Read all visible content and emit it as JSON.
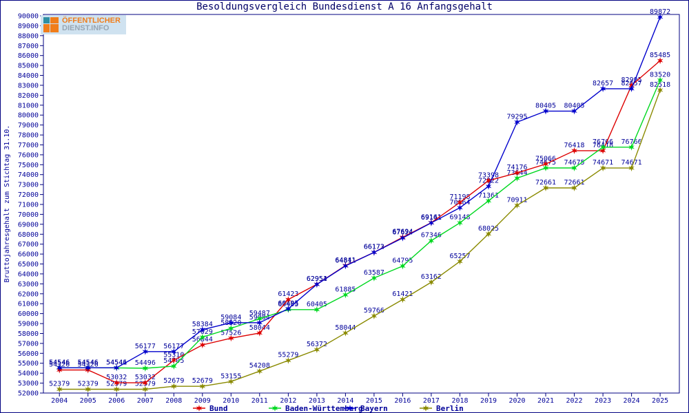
{
  "logo": {
    "line1": "ÖFFENTLICHER",
    "line2": "DIENST.INFO"
  },
  "colors": {
    "frame": "#000080",
    "label_text": "#000099",
    "title_text": "#000066",
    "bund": "#dd0000",
    "baden_wuerttemberg": "#00d820",
    "bayern": "#0000cc",
    "berlin": "#8a8a00"
  },
  "chart_data": {
    "type": "line",
    "title": "Besoldungsvergleich Bundesdienst A 16 Anfangsgehalt",
    "xlabel": "",
    "ylabel": "Bruttojahresgehalt zum Stichtag 31.10.",
    "ylim": [
      52000,
      90000
    ],
    "y_step": 1000,
    "grid": false,
    "legend_position": "bottom",
    "x": [
      2004,
      2005,
      2006,
      2007,
      2008,
      2009,
      2010,
      2011,
      2012,
      2013,
      2014,
      2015,
      2016,
      2017,
      2018,
      2019,
      2020,
      2021,
      2022,
      2023,
      2024,
      2025
    ],
    "series": [
      {
        "name": "Bund",
        "color": "#dd0000",
        "values": [
          54326,
          54326,
          53032,
          53032,
          55310,
          56844,
          57526,
          58044,
          61423,
          62954,
          64841,
          66173,
          67694,
          69161,
          71198,
          73398,
          74176,
          75066,
          76418,
          76418,
          82995,
          85485
        ]
      },
      {
        "name": "Baden-Württemberg",
        "color": "#00d820",
        "values": [
          54546,
          54546,
          54541,
          54496,
          54705,
          57629,
          58520,
          59487,
          60405,
          60405,
          61885,
          63587,
          64795,
          67346,
          69148,
          71361,
          73644,
          74675,
          74675,
          76766,
          76766,
          83520
        ]
      },
      {
        "name": "Bayern",
        "color": "#0000cc",
        "values": [
          54546,
          54546,
          54546,
          56177,
          56177,
          58384,
          59084,
          59084,
          60495,
          62951,
          64811,
          66172,
          67624,
          69141,
          70664,
          72822,
          79295,
          80405,
          80405,
          82657,
          82657,
          89872
        ]
      },
      {
        "name": "Berlin",
        "color": "#8a8a00",
        "values": [
          52379,
          52379,
          52379,
          52379,
          52679,
          52679,
          53155,
          54208,
          55279,
          56372,
          58044,
          59766,
          61421,
          63162,
          65257,
          68025,
          70911,
          72661,
          72661,
          74671,
          74671,
          82518
        ]
      }
    ]
  }
}
